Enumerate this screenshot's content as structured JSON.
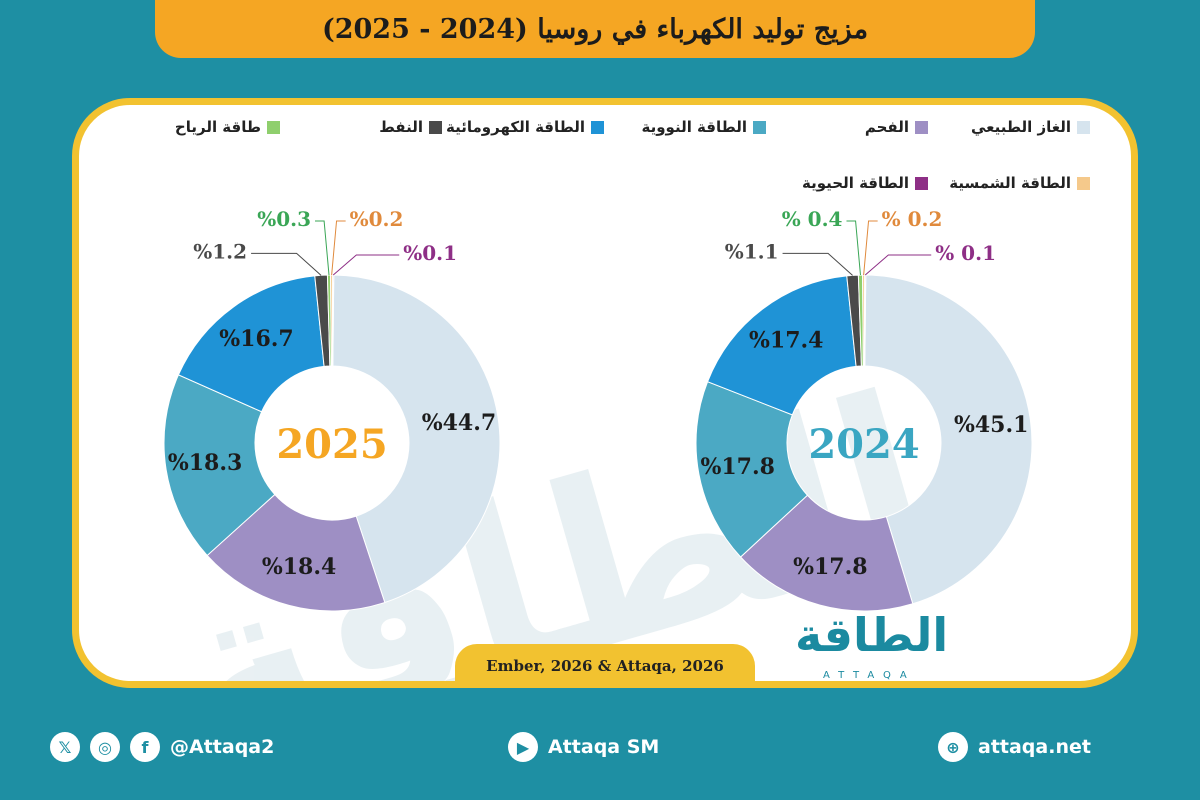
{
  "title": "مزيج توليد الكهرباء في روسيا (2024 - 2025)",
  "source": "Ember, 2026 & Attaqa, 2026",
  "logo": {
    "arabic": "الطاقة",
    "latin": "ATTAQA"
  },
  "footer": {
    "social_handle": "@Attaqa2",
    "youtube": "Attaqa SM",
    "website": "attaqa.net"
  },
  "legend": [
    {
      "label": "الغاز الطبيعي",
      "color": "#d6e4ee"
    },
    {
      "label": "الفحم",
      "color": "#9e8fc4"
    },
    {
      "label": "الطاقة النووية",
      "color": "#4ba9c4"
    },
    {
      "label": "الطاقة الكهرومائية",
      "color": "#1f93d6"
    },
    {
      "label": "النفط",
      "color": "#4a4a4a"
    },
    {
      "label": "طاقة الرياح",
      "color": "#8fcf6d"
    },
    {
      "label": "الطاقة الشمسية",
      "color": "#f5c98b"
    },
    {
      "label": "الطاقة الحيوية",
      "color": "#8e2f86"
    }
  ],
  "chart_data": [
    {
      "type": "pie",
      "year": "2025",
      "year_color": "#f5a623",
      "categories": [
        "الغاز الطبيعي",
        "الفحم",
        "الطاقة النووية",
        "الطاقة الكهرومائية",
        "النفط",
        "طاقة الرياح",
        "الطاقة الشمسية",
        "الطاقة الحيوية"
      ],
      "values": [
        44.7,
        18.4,
        18.3,
        16.7,
        1.2,
        0.3,
        0.2,
        0.1
      ],
      "labels": [
        "%44.7",
        "%18.4",
        "%18.3",
        "%16.7",
        "%1.2",
        "%0.3",
        "%0.2",
        "%0.1"
      ]
    },
    {
      "type": "pie",
      "year": "2024",
      "year_color": "#3aa6c2",
      "categories": [
        "الغاز الطبيعي",
        "الفحم",
        "الطاقة النووية",
        "الطاقة الكهرومائية",
        "النفط",
        "طاقة الرياح",
        "الطاقة الشمسية",
        "الطاقة الحيوية"
      ],
      "values": [
        45.1,
        17.8,
        17.8,
        17.4,
        1.1,
        0.4,
        0.2,
        0.1
      ],
      "labels": [
        "%45.1",
        "%17.8",
        "%17.8",
        "%17.4",
        "%1.1",
        "% 0.4",
        "% 0.2",
        "% 0.1"
      ]
    }
  ]
}
